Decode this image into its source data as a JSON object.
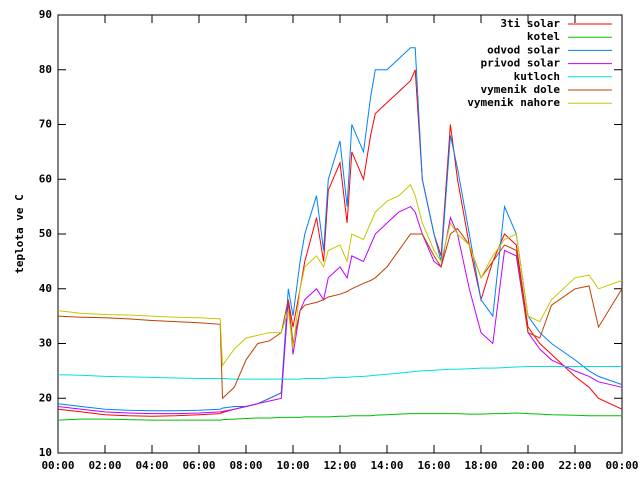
{
  "chart_data": {
    "type": "line",
    "ylabel": "teplota ve C",
    "x": [
      0,
      1,
      2,
      3,
      4,
      5,
      6,
      6.9,
      7,
      7.5,
      8,
      8.5,
      9,
      9.5,
      9.8,
      10,
      10.3,
      10.5,
      11,
      11.3,
      11.5,
      12,
      12.3,
      12.5,
      13,
      13.3,
      13.5,
      14,
      14.5,
      15,
      15.2,
      15.5,
      16,
      16.3,
      16.7,
      17,
      17.5,
      18,
      18.5,
      19,
      19.5,
      20,
      20.5,
      21,
      22,
      22.6,
      23,
      24
    ],
    "xlim": [
      0,
      24
    ],
    "xticks": [
      {
        "value": 0,
        "label": "00:00"
      },
      {
        "value": 2,
        "label": "02:00"
      },
      {
        "value": 4,
        "label": "04:00"
      },
      {
        "value": 6,
        "label": "06:00"
      },
      {
        "value": 8,
        "label": "08:00"
      },
      {
        "value": 10,
        "label": "10:00"
      },
      {
        "value": 12,
        "label": "12:00"
      },
      {
        "value": 14,
        "label": "14:00"
      },
      {
        "value": 16,
        "label": "16:00"
      },
      {
        "value": 18,
        "label": "18:00"
      },
      {
        "value": 20,
        "label": "20:00"
      },
      {
        "value": 22,
        "label": "22:00"
      },
      {
        "value": 24,
        "label": "00:00"
      }
    ],
    "ylim": [
      10,
      90
    ],
    "yticks": [
      10,
      20,
      30,
      40,
      50,
      60,
      70,
      80,
      90
    ],
    "legend": "top-right",
    "series": [
      {
        "name": "3ti solar",
        "color": "#ff0000",
        "values": [
          18,
          17.5,
          17,
          16.8,
          16.7,
          16.8,
          17,
          17.2,
          17.4,
          18,
          18.5,
          19,
          20,
          21,
          38,
          33,
          40,
          45,
          53,
          45,
          58,
          63,
          52,
          65,
          60,
          68,
          72,
          74,
          76,
          78,
          80,
          60,
          50,
          46,
          70,
          60,
          48,
          38,
          45,
          50,
          48,
          33,
          30,
          28,
          24,
          22,
          20,
          18
        ]
      },
      {
        "name": "kotel",
        "color": "#00c000",
        "values": [
          16,
          16.2,
          16.2,
          16.1,
          16,
          16,
          16,
          16,
          16.1,
          16.2,
          16.3,
          16.4,
          16.4,
          16.5,
          16.5,
          16.5,
          16.5,
          16.6,
          16.6,
          16.6,
          16.6,
          16.7,
          16.7,
          16.8,
          16.8,
          16.8,
          16.9,
          17,
          17.1,
          17.2,
          17.2,
          17.2,
          17.2,
          17.2,
          17.2,
          17.2,
          17.1,
          17.1,
          17.2,
          17.2,
          17.3,
          17.2,
          17.1,
          17,
          16.9,
          16.8,
          16.8,
          16.8
        ]
      },
      {
        "name": "odvod solar",
        "color": "#0080ff",
        "values": [
          19,
          18.5,
          18,
          17.8,
          17.7,
          17.7,
          17.8,
          18,
          18.2,
          18.5,
          18.5,
          19,
          20,
          21,
          40,
          35,
          45,
          50,
          57,
          47,
          60,
          67,
          55,
          70,
          65,
          75,
          80,
          80,
          82,
          84,
          84,
          60,
          50,
          45,
          68,
          62,
          50,
          38,
          35,
          55,
          50,
          35,
          32,
          30,
          27,
          25,
          24,
          22.5
        ]
      },
      {
        "name": "privod solar",
        "color": "#c000ff",
        "values": [
          18.5,
          18,
          17.5,
          17.3,
          17.2,
          17.2,
          17.3,
          17.5,
          17.6,
          18,
          18.5,
          19,
          19.5,
          20,
          38,
          28,
          36,
          38,
          40,
          38,
          42,
          44,
          42,
          46,
          45,
          48,
          50,
          52,
          54,
          55,
          54,
          50,
          45,
          44,
          53,
          50,
          40,
          32,
          30,
          47,
          46,
          32,
          29,
          27,
          25,
          24,
          23,
          22
        ]
      },
      {
        "name": "kutloch",
        "color": "#00e0e0",
        "values": [
          24.3,
          24.2,
          24,
          23.9,
          23.8,
          23.7,
          23.6,
          23.6,
          23.6,
          23.5,
          23.5,
          23.5,
          23.5,
          23.5,
          23.5,
          23.5,
          23.5,
          23.6,
          23.6,
          23.6,
          23.7,
          23.8,
          23.8,
          23.9,
          24,
          24.1,
          24.2,
          24.4,
          24.6,
          24.8,
          24.9,
          25,
          25.1,
          25.2,
          25.3,
          25.3,
          25.4,
          25.5,
          25.5,
          25.6,
          25.7,
          25.8,
          25.8,
          25.8,
          25.8,
          25.8,
          25.8,
          25.8
        ]
      },
      {
        "name": "vymenik dole",
        "color": "#c04000",
        "values": [
          35,
          34.8,
          34.7,
          34.5,
          34.2,
          34,
          33.8,
          33.5,
          20,
          22,
          27,
          30,
          30.5,
          32,
          38,
          30,
          36,
          37,
          37.5,
          38,
          38.5,
          39,
          39.5,
          40,
          41,
          41.5,
          42,
          44,
          47,
          50,
          50,
          50,
          46,
          44,
          50,
          51,
          48,
          42,
          45,
          48,
          47,
          32,
          31,
          37,
          40,
          40.5,
          33,
          40
        ]
      },
      {
        "name": "vymenik nahore",
        "color": "#c8c800",
        "values": [
          36,
          35.5,
          35.3,
          35.2,
          35,
          34.8,
          34.7,
          34.5,
          26,
          29,
          31,
          31.5,
          32,
          32,
          36,
          29,
          40,
          44,
          46,
          44,
          47,
          48,
          45,
          50,
          49,
          52,
          54,
          56,
          57,
          59,
          57,
          52,
          47,
          45,
          52,
          50,
          48,
          42,
          46,
          49,
          50,
          35,
          34,
          38,
          42,
          42.5,
          40,
          41.5
        ]
      }
    ]
  }
}
